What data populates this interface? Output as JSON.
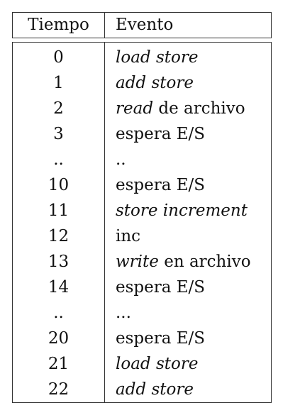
{
  "table": {
    "headers": {
      "time": "Tiempo",
      "event": "Evento"
    },
    "rows": [
      {
        "time": "0",
        "parts": [
          {
            "text": "load store",
            "italic": true
          }
        ]
      },
      {
        "time": "1",
        "parts": [
          {
            "text": "add store",
            "italic": true
          }
        ]
      },
      {
        "time": "2",
        "parts": [
          {
            "text": "read",
            "italic": true
          },
          {
            "text": " de archivo",
            "italic": false
          }
        ]
      },
      {
        "time": "3",
        "parts": [
          {
            "text": "espera E/S",
            "italic": false
          }
        ]
      },
      {
        "time": "..",
        "parts": [
          {
            "text": "..",
            "italic": false
          }
        ]
      },
      {
        "time": "10",
        "parts": [
          {
            "text": "espera E/S",
            "italic": false
          }
        ]
      },
      {
        "time": "11",
        "parts": [
          {
            "text": "store increment",
            "italic": true
          }
        ]
      },
      {
        "time": "12",
        "parts": [
          {
            "text": "inc",
            "italic": false
          }
        ]
      },
      {
        "time": "13",
        "parts": [
          {
            "text": "write",
            "italic": true
          },
          {
            "text": " en archivo",
            "italic": false
          }
        ]
      },
      {
        "time": "14",
        "parts": [
          {
            "text": "espera E/S",
            "italic": false
          }
        ]
      },
      {
        "time": "..",
        "parts": [
          {
            "text": "...",
            "italic": false
          }
        ]
      },
      {
        "time": "20",
        "parts": [
          {
            "text": "espera E/S",
            "italic": false
          }
        ]
      },
      {
        "time": "21",
        "parts": [
          {
            "text": "load store",
            "italic": true
          }
        ]
      },
      {
        "time": "22",
        "parts": [
          {
            "text": "add store",
            "italic": true
          }
        ]
      }
    ]
  }
}
